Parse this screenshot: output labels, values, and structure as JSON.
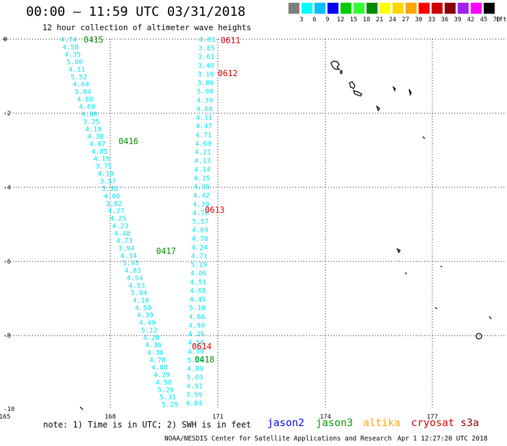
{
  "header": {
    "title": "00:00 – 11:59 UTC 03/31/2018",
    "subtitle": "12 hour collection of altimeter wave heights"
  },
  "colorbar": {
    "unit_label": "(ft)",
    "ticks": [
      "3",
      "6",
      "9",
      "12",
      "15",
      "18",
      "21",
      "24",
      "27",
      "30",
      "33",
      "36",
      "39",
      "42",
      "45",
      "70"
    ],
    "colors": [
      "#7f7f7f",
      "#00ffff",
      "#00bfff",
      "#0000ff",
      "#00cd00",
      "#33ff33",
      "#008b00",
      "#ffff00",
      "#ffd700",
      "#ffa500",
      "#ff0000",
      "#cd0000",
      "#8b0000",
      "#a020f0",
      "#ff00ff",
      "#000000"
    ]
  },
  "axes": {
    "lon_labels": [
      "165",
      "168",
      "171",
      "174",
      "177"
    ],
    "lat_labels": [
      "0",
      "-2",
      "-4",
      "-6",
      "-8",
      "-10"
    ]
  },
  "tracks": {
    "jason3_track1": [
      "4.74",
      "4.58",
      "4.35",
      "5.00",
      "4.11",
      "5.52",
      "4.64",
      "5.04",
      "4.80",
      "4.69",
      "4.80",
      "3.25",
      "4.19",
      "4.38",
      "4.67",
      "4.85",
      "4.19",
      "3.75",
      "4.10",
      "3.57",
      "3.38",
      "4.06",
      "3.82",
      "4.27",
      "4.25",
      "4.23",
      "4.48",
      "4.73",
      "3.94",
      "4.34",
      "3.93",
      "4.83",
      "4.54",
      "4.53",
      "5.04",
      "4.16",
      "4.59",
      "4.39",
      "4.49",
      "5.12",
      "4.20",
      "4.36",
      "4.36",
      "4.78",
      "4.88",
      "4.29",
      "4.58",
      "5.29",
      "5.31",
      "5.29"
    ],
    "cryosat_track": [
      "4.03",
      "3.85",
      "3.61",
      "3.40",
      "3.19",
      "3.80",
      "5.00",
      "4.39",
      "4.60",
      "4.11",
      "4.47",
      "4.71",
      "4.69",
      "4.21",
      "4.13",
      "4.14",
      "4.15",
      "4.35",
      "4.42",
      "4.39",
      "4.76",
      "5.57",
      "4.69",
      "4.70",
      "4.24",
      "4.71",
      "5.19",
      "4.06",
      "4.51",
      "4.68",
      "4.45",
      "5.10",
      "4.66",
      "4.90",
      "4.26",
      "4.58",
      "4.59",
      "5.20",
      "4.89",
      "5.03",
      "4.91",
      "3.99",
      "4.84"
    ],
    "time_labels": [
      {
        "text": "0415",
        "sat": "jason3"
      },
      {
        "text": "0416",
        "sat": "jason3"
      },
      {
        "text": "0417",
        "sat": "jason3"
      },
      {
        "text": "0418",
        "sat": "jason3"
      },
      {
        "text": "0611",
        "sat": "cryosat"
      },
      {
        "text": "0612",
        "sat": "cryosat"
      },
      {
        "text": "0613",
        "sat": "cryosat"
      },
      {
        "text": "0614",
        "sat": "cryosat"
      }
    ]
  },
  "footer": {
    "note": "note: 1) Time is in UTC; 2) SWH is in feet",
    "legend": [
      {
        "name": "jason2",
        "color": "#0000ff"
      },
      {
        "name": "jason3",
        "color": "#00a000"
      },
      {
        "name": "altika",
        "color": "#ffa500"
      },
      {
        "name": "cryosat",
        "color": "#d00000"
      },
      {
        "name": "s3a",
        "color": "#8b0000"
      }
    ],
    "credit": "NOAA/NESDIS Center for Satellite Applications and Research",
    "timestamp": "Apr  1 12:27:20 UTC 2018"
  },
  "chart_data": {
    "type": "scatter",
    "title": "00:00 – 11:59 UTC 03/31/2018",
    "subtitle": "12 hour collection of altimeter wave heights",
    "xlim": [
      165,
      177
    ],
    "ylim": [
      -10,
      0
    ],
    "units": "ft"
  }
}
